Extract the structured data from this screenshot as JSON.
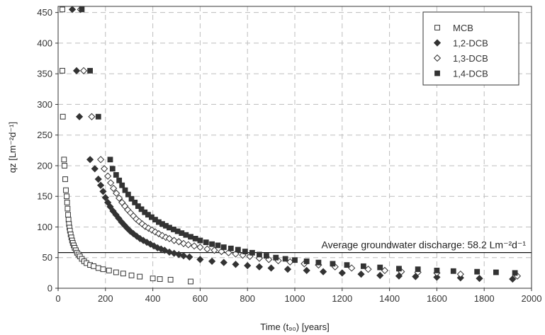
{
  "chart_data": {
    "type": "scatter",
    "xlabel": "Time (t₉₀) [years]",
    "ylabel": "qz [Lm⁻²d⁻¹]",
    "xlim": [
      0,
      2000
    ],
    "ylim": [
      0,
      460
    ],
    "xticks": [
      0,
      200,
      400,
      600,
      800,
      1000,
      1200,
      1400,
      1600,
      1800,
      2000
    ],
    "yticks": [
      0,
      50,
      100,
      150,
      200,
      250,
      300,
      350,
      400,
      450
    ],
    "grid": true,
    "legend_position": "top-right",
    "reference_line": {
      "y": 58.2,
      "label": "Average groundwater discharge: 58.2  Lm⁻²d⁻¹"
    },
    "series": [
      {
        "name": "MCB",
        "marker": "open-square",
        "color": "#333333",
        "points": [
          [
            18,
            455
          ],
          [
            18,
            355
          ],
          [
            20,
            280
          ],
          [
            25,
            210
          ],
          [
            27,
            200
          ],
          [
            30,
            178
          ],
          [
            33,
            160
          ],
          [
            36,
            150
          ],
          [
            38,
            140
          ],
          [
            40,
            130
          ],
          [
            42,
            120
          ],
          [
            44,
            112
          ],
          [
            46,
            105
          ],
          [
            48,
            99
          ],
          [
            50,
            94
          ],
          [
            53,
            88
          ],
          [
            56,
            83
          ],
          [
            59,
            78
          ],
          [
            62,
            74
          ],
          [
            66,
            70
          ],
          [
            70,
            66
          ],
          [
            75,
            62
          ],
          [
            80,
            58
          ],
          [
            86,
            55
          ],
          [
            92,
            52
          ],
          [
            100,
            48
          ],
          [
            110,
            44
          ],
          [
            120,
            41
          ],
          [
            135,
            38
          ],
          [
            150,
            36
          ],
          [
            170,
            33
          ],
          [
            190,
            31
          ],
          [
            215,
            29
          ],
          [
            245,
            26
          ],
          [
            275,
            24
          ],
          [
            310,
            21
          ],
          [
            345,
            19
          ],
          [
            400,
            16
          ],
          [
            430,
            15
          ],
          [
            475,
            14
          ],
          [
            560,
            11
          ]
        ]
      },
      {
        "name": "1,2-DCB",
        "marker": "filled-diamond",
        "color": "#333333",
        "points": [
          [
            60,
            455
          ],
          [
            78,
            355
          ],
          [
            90,
            280
          ],
          [
            135,
            210
          ],
          [
            155,
            195
          ],
          [
            170,
            178
          ],
          [
            180,
            168
          ],
          [
            190,
            158
          ],
          [
            200,
            148
          ],
          [
            210,
            140
          ],
          [
            220,
            133
          ],
          [
            232,
            126
          ],
          [
            244,
            120
          ],
          [
            256,
            114
          ],
          [
            268,
            108
          ],
          [
            280,
            103
          ],
          [
            292,
            98
          ],
          [
            305,
            93
          ],
          [
            318,
            89
          ],
          [
            332,
            85
          ],
          [
            346,
            81
          ],
          [
            360,
            78
          ],
          [
            375,
            75
          ],
          [
            390,
            72
          ],
          [
            405,
            69
          ],
          [
            420,
            66
          ],
          [
            435,
            64
          ],
          [
            450,
            62
          ],
          [
            470,
            59
          ],
          [
            490,
            57
          ],
          [
            510,
            55
          ],
          [
            530,
            53
          ],
          [
            555,
            51
          ],
          [
            600,
            47
          ],
          [
            650,
            44
          ],
          [
            700,
            42
          ],
          [
            750,
            39
          ],
          [
            800,
            37
          ],
          [
            850,
            35
          ],
          [
            900,
            33
          ],
          [
            970,
            31
          ],
          [
            1050,
            29
          ],
          [
            1120,
            27
          ],
          [
            1200,
            25
          ],
          [
            1280,
            23
          ],
          [
            1360,
            21
          ],
          [
            1440,
            20
          ],
          [
            1510,
            19
          ],
          [
            1600,
            18
          ],
          [
            1700,
            17
          ],
          [
            1780,
            16
          ],
          [
            1920,
            15
          ]
        ]
      },
      {
        "name": "1,3-DCB",
        "marker": "open-diamond",
        "color": "#333333",
        "points": [
          [
            95,
            455
          ],
          [
            108,
            355
          ],
          [
            142,
            280
          ],
          [
            180,
            210
          ],
          [
            195,
            195
          ],
          [
            210,
            183
          ],
          [
            222,
            172
          ],
          [
            234,
            163
          ],
          [
            246,
            155
          ],
          [
            258,
            147
          ],
          [
            270,
            140
          ],
          [
            282,
            134
          ],
          [
            294,
            128
          ],
          [
            306,
            123
          ],
          [
            318,
            118
          ],
          [
            330,
            113
          ],
          [
            342,
            109
          ],
          [
            355,
            105
          ],
          [
            368,
            101
          ],
          [
            382,
            98
          ],
          [
            396,
            95
          ],
          [
            410,
            92
          ],
          [
            425,
            89
          ],
          [
            440,
            86
          ],
          [
            455,
            83
          ],
          [
            470,
            81
          ],
          [
            490,
            78
          ],
          [
            510,
            76
          ],
          [
            530,
            73
          ],
          [
            550,
            71
          ],
          [
            575,
            69
          ],
          [
            600,
            67
          ],
          [
            630,
            64
          ],
          [
            660,
            62
          ],
          [
            690,
            60
          ],
          [
            720,
            58
          ],
          [
            750,
            56
          ],
          [
            780,
            54
          ],
          [
            810,
            52
          ],
          [
            850,
            49
          ],
          [
            890,
            47
          ],
          [
            930,
            45
          ],
          [
            980,
            43
          ],
          [
            1040,
            40
          ],
          [
            1100,
            38
          ],
          [
            1170,
            35
          ],
          [
            1240,
            33
          ],
          [
            1310,
            31
          ],
          [
            1380,
            29
          ],
          [
            1450,
            27
          ],
          [
            1520,
            26
          ],
          [
            1600,
            25
          ],
          [
            1700,
            23
          ],
          [
            1940,
            20
          ]
        ]
      },
      {
        "name": "1,4-DCB",
        "marker": "filled-square",
        "color": "#333333",
        "points": [
          [
            100,
            455
          ],
          [
            135,
            355
          ],
          [
            170,
            280
          ],
          [
            220,
            210
          ],
          [
            230,
            195
          ],
          [
            245,
            185
          ],
          [
            258,
            176
          ],
          [
            270,
            168
          ],
          [
            283,
            160
          ],
          [
            296,
            153
          ],
          [
            310,
            146
          ],
          [
            324,
            140
          ],
          [
            338,
            134
          ],
          [
            352,
            129
          ],
          [
            366,
            124
          ],
          [
            380,
            120
          ],
          [
            395,
            116
          ],
          [
            410,
            112
          ],
          [
            425,
            108
          ],
          [
            440,
            105
          ],
          [
            455,
            102
          ],
          [
            470,
            99
          ],
          [
            488,
            96
          ],
          [
            505,
            93
          ],
          [
            522,
            90
          ],
          [
            540,
            87
          ],
          [
            560,
            84
          ],
          [
            580,
            81
          ],
          [
            600,
            78
          ],
          [
            625,
            75
          ],
          [
            650,
            72
          ],
          [
            675,
            70
          ],
          [
            700,
            67
          ],
          [
            730,
            65
          ],
          [
            760,
            63
          ],
          [
            790,
            60
          ],
          [
            820,
            58
          ],
          [
            850,
            55
          ],
          [
            880,
            53
          ],
          [
            920,
            50
          ],
          [
            960,
            48
          ],
          [
            1000,
            46
          ],
          [
            1050,
            44
          ],
          [
            1100,
            42
          ],
          [
            1160,
            40
          ],
          [
            1220,
            38
          ],
          [
            1290,
            36
          ],
          [
            1360,
            34
          ],
          [
            1440,
            32
          ],
          [
            1520,
            31
          ],
          [
            1600,
            29
          ],
          [
            1670,
            28
          ],
          [
            1770,
            27
          ],
          [
            1850,
            26
          ],
          [
            1930,
            25
          ]
        ]
      }
    ]
  }
}
